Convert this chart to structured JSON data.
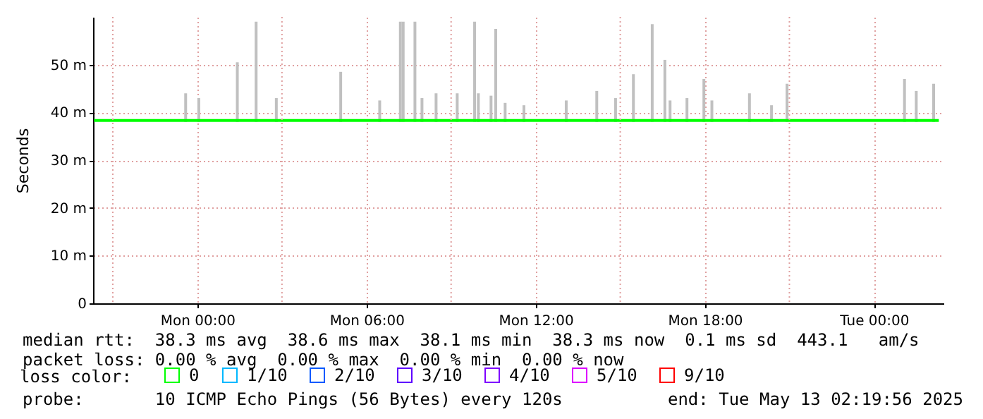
{
  "chart_data": {
    "type": "line",
    "ylabel": "Seconds",
    "legend_title": "loss color:",
    "legend": "bottom",
    "grid": true,
    "xlim": [
      "2025-05-11T20:18",
      "2025-05-13T02:28"
    ],
    "xticks": [
      {
        "value": "2025-05-11T21:00",
        "label": null
      },
      {
        "value": "2025-05-12T00:00",
        "label": "Mon 00:00"
      },
      {
        "value": "2025-05-12T03:00",
        "label": null
      },
      {
        "value": "2025-05-12T06:00",
        "label": "Mon 06:00"
      },
      {
        "value": "2025-05-12T09:00",
        "label": null
      },
      {
        "value": "2025-05-12T12:00",
        "label": "Mon 12:00"
      },
      {
        "value": "2025-05-12T15:00",
        "label": null
      },
      {
        "value": "2025-05-12T18:00",
        "label": "Mon 18:00"
      },
      {
        "value": "2025-05-12T21:00",
        "label": null
      },
      {
        "value": "2025-05-13T00:00",
        "label": "Tue 00:00"
      }
    ],
    "ylim": [
      0,
      60
    ],
    "yticks": [
      0,
      {
        "value": 10,
        "label": "10 m"
      },
      {
        "value": 20,
        "label": "20 m"
      },
      {
        "value": 30,
        "label": "30 m"
      },
      {
        "value": 40,
        "label": "40 m"
      },
      {
        "value": 50,
        "label": "50 m"
      }
    ],
    "series": [
      {
        "type": "bar",
        "color": "#c0c0c0",
        "x": [
          "2025-05-11T23:35",
          "2025-05-12T00:03",
          "2025-05-12T01:25",
          "2025-05-12T02:05",
          "2025-05-12T02:48",
          "2025-05-12T05:05",
          "2025-05-12T06:28",
          "2025-05-12T07:12",
          "2025-05-12T07:18",
          "2025-05-12T07:43",
          "2025-05-12T07:58",
          "2025-05-12T08:28",
          "2025-05-12T09:13",
          "2025-05-12T09:50",
          "2025-05-12T09:58",
          "2025-05-12T10:25",
          "2025-05-12T10:35",
          "2025-05-12T10:55",
          "2025-05-12T11:35",
          "2025-05-12T13:05",
          "2025-05-12T14:10",
          "2025-05-12T14:50",
          "2025-05-12T15:28",
          "2025-05-12T16:08",
          "2025-05-12T16:35",
          "2025-05-12T16:46",
          "2025-05-12T17:22",
          "2025-05-12T17:58",
          "2025-05-12T18:15",
          "2025-05-12T19:35",
          "2025-05-12T20:22",
          "2025-05-12T20:55",
          "2025-05-13T01:05",
          "2025-05-13T01:30",
          "2025-05-13T02:07"
        ],
        "values": [
          6,
          5,
          12.5,
          21,
          5,
          10.5,
          4.5,
          21,
          21,
          21,
          5,
          6,
          6,
          21,
          6,
          5.5,
          19.5,
          4,
          3.5,
          4.5,
          6.5,
          5,
          10,
          20.5,
          13,
          4.5,
          5,
          9,
          4.5,
          6,
          3.5,
          8,
          9,
          6.5,
          8
        ],
        "base": [
          38,
          38,
          38,
          38,
          38,
          38,
          38,
          38,
          38,
          38,
          38,
          38,
          38,
          38,
          38,
          38,
          38,
          38,
          38,
          38,
          38,
          38,
          38,
          38,
          38,
          38,
          38,
          38,
          38,
          38,
          38,
          38,
          38,
          38,
          38
        ]
      },
      {
        "name": "0",
        "color": "#00ff00",
        "x": [
          "2025-05-11T20:20",
          "2025-05-12T06:00",
          "2025-05-12T12:00",
          "2025-05-12T18:00",
          "2025-05-13T02:18"
        ],
        "values": [
          38.3,
          38.3,
          38.3,
          38.3,
          38.3
        ]
      },
      {
        "name": "1/10",
        "color": "#00b8ff"
      },
      {
        "name": "2/10",
        "color": "#0059ff"
      },
      {
        "name": "3/10",
        "color": "#5e00ff"
      },
      {
        "name": "4/10",
        "color": "#7e00ff"
      },
      {
        "name": "5/10",
        "color": "#dd00ff"
      },
      {
        "name": "9/10",
        "color": "#ff0000"
      }
    ],
    "annotations": [
      "median rtt:  38.3 ms avg  38.6 ms max  38.1 ms min  38.3 ms now  0.1 ms sd  443.1   am/s",
      "packet loss: 0.00 % avg  0.00 % max  0.00 % min  0.00 % now",
      "probe:       10 ICMP Echo Pings (56 Bytes) every 120s",
      "end: Tue May 13 02:19:56 2025"
    ]
  }
}
